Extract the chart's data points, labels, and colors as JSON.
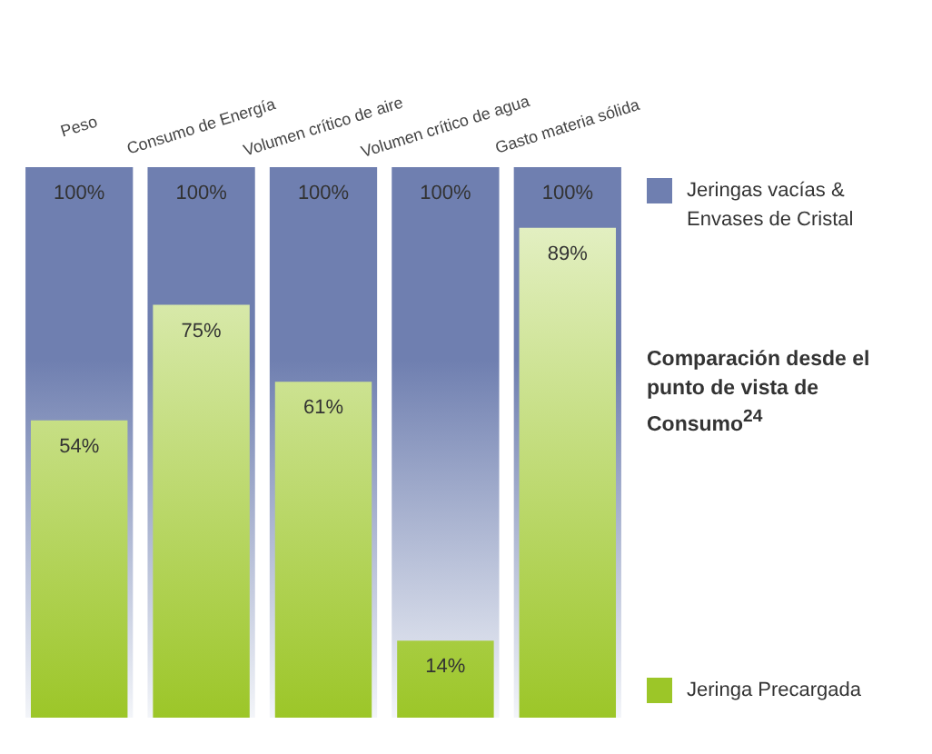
{
  "chart_data": {
    "type": "bar",
    "title": "Comparación desde el punto de vista de Consumo$^{24}$",
    "categories": [
      "Peso",
      "Consumo de Energía",
      "Volumen crítico de aire",
      "Volumen crítico de agua",
      "Gasto materia sólida"
    ],
    "series": [
      {
        "name": "Jeringas vacías & Envases de Cristal",
        "color": "#6f7fb0",
        "values": [
          100,
          100,
          100,
          100,
          100
        ],
        "value_labels": [
          "100%",
          "100%",
          "100%",
          "100%",
          "100%"
        ]
      },
      {
        "name": "Jeringa Precargada",
        "color": "#9cc628",
        "values": [
          54,
          75,
          61,
          14,
          89
        ],
        "value_labels": [
          "54%",
          "75%",
          "61%",
          "14%",
          "89%"
        ]
      }
    ],
    "ylim": [
      0,
      100
    ],
    "tick_labels": "x",
    "legend": "right",
    "grid": false
  }
}
